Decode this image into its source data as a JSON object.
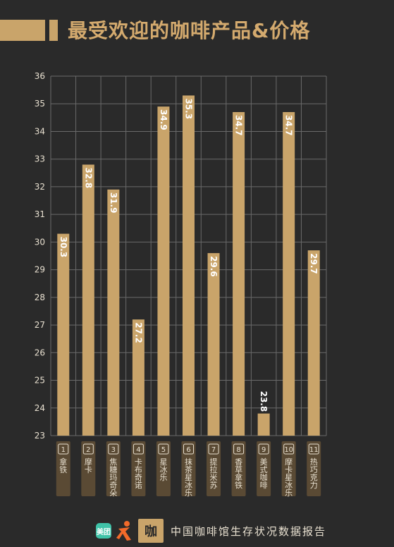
{
  "title": "最受欢迎的咖啡产品&价格",
  "footer": {
    "logo_meituan": "美团",
    "logo_coffee": "咖",
    "text": "中国咖啡馆生存状况数据报告"
  },
  "colors": {
    "background": "#2a2a2a",
    "bar": "#c9a46a",
    "grid": "#6a6a6a",
    "text": "#e8e0d0"
  },
  "chart_data": {
    "type": "bar",
    "orientation": "vertical",
    "categories": [
      "拿铁",
      "摩卡",
      "焦糖玛奇朵",
      "卡布奇诺",
      "星冰乐",
      "抹茶星冰乐",
      "提拉米苏",
      "香草拿铁",
      "美式咖啡",
      "摩卡星冰乐",
      "热巧克力"
    ],
    "indices": [
      "1",
      "2",
      "3",
      "4",
      "5",
      "6",
      "7",
      "8",
      "9",
      "10",
      "11"
    ],
    "values": [
      30.3,
      32.8,
      31.9,
      27.2,
      34.9,
      35.3,
      29.6,
      34.7,
      23.8,
      34.7,
      29.7
    ],
    "value_labels": [
      "30.3",
      "32.8",
      "31.9",
      "27.2",
      "34.9",
      "35.3",
      "29.6",
      "34.7",
      "23.8",
      "34.7",
      "29.7"
    ],
    "ylim": [
      23,
      36
    ],
    "yticks": [
      "23",
      "24",
      "25",
      "26",
      "27",
      "28",
      "29",
      "30",
      "31",
      "32",
      "33",
      "34",
      "35",
      "36"
    ],
    "grid": true
  }
}
